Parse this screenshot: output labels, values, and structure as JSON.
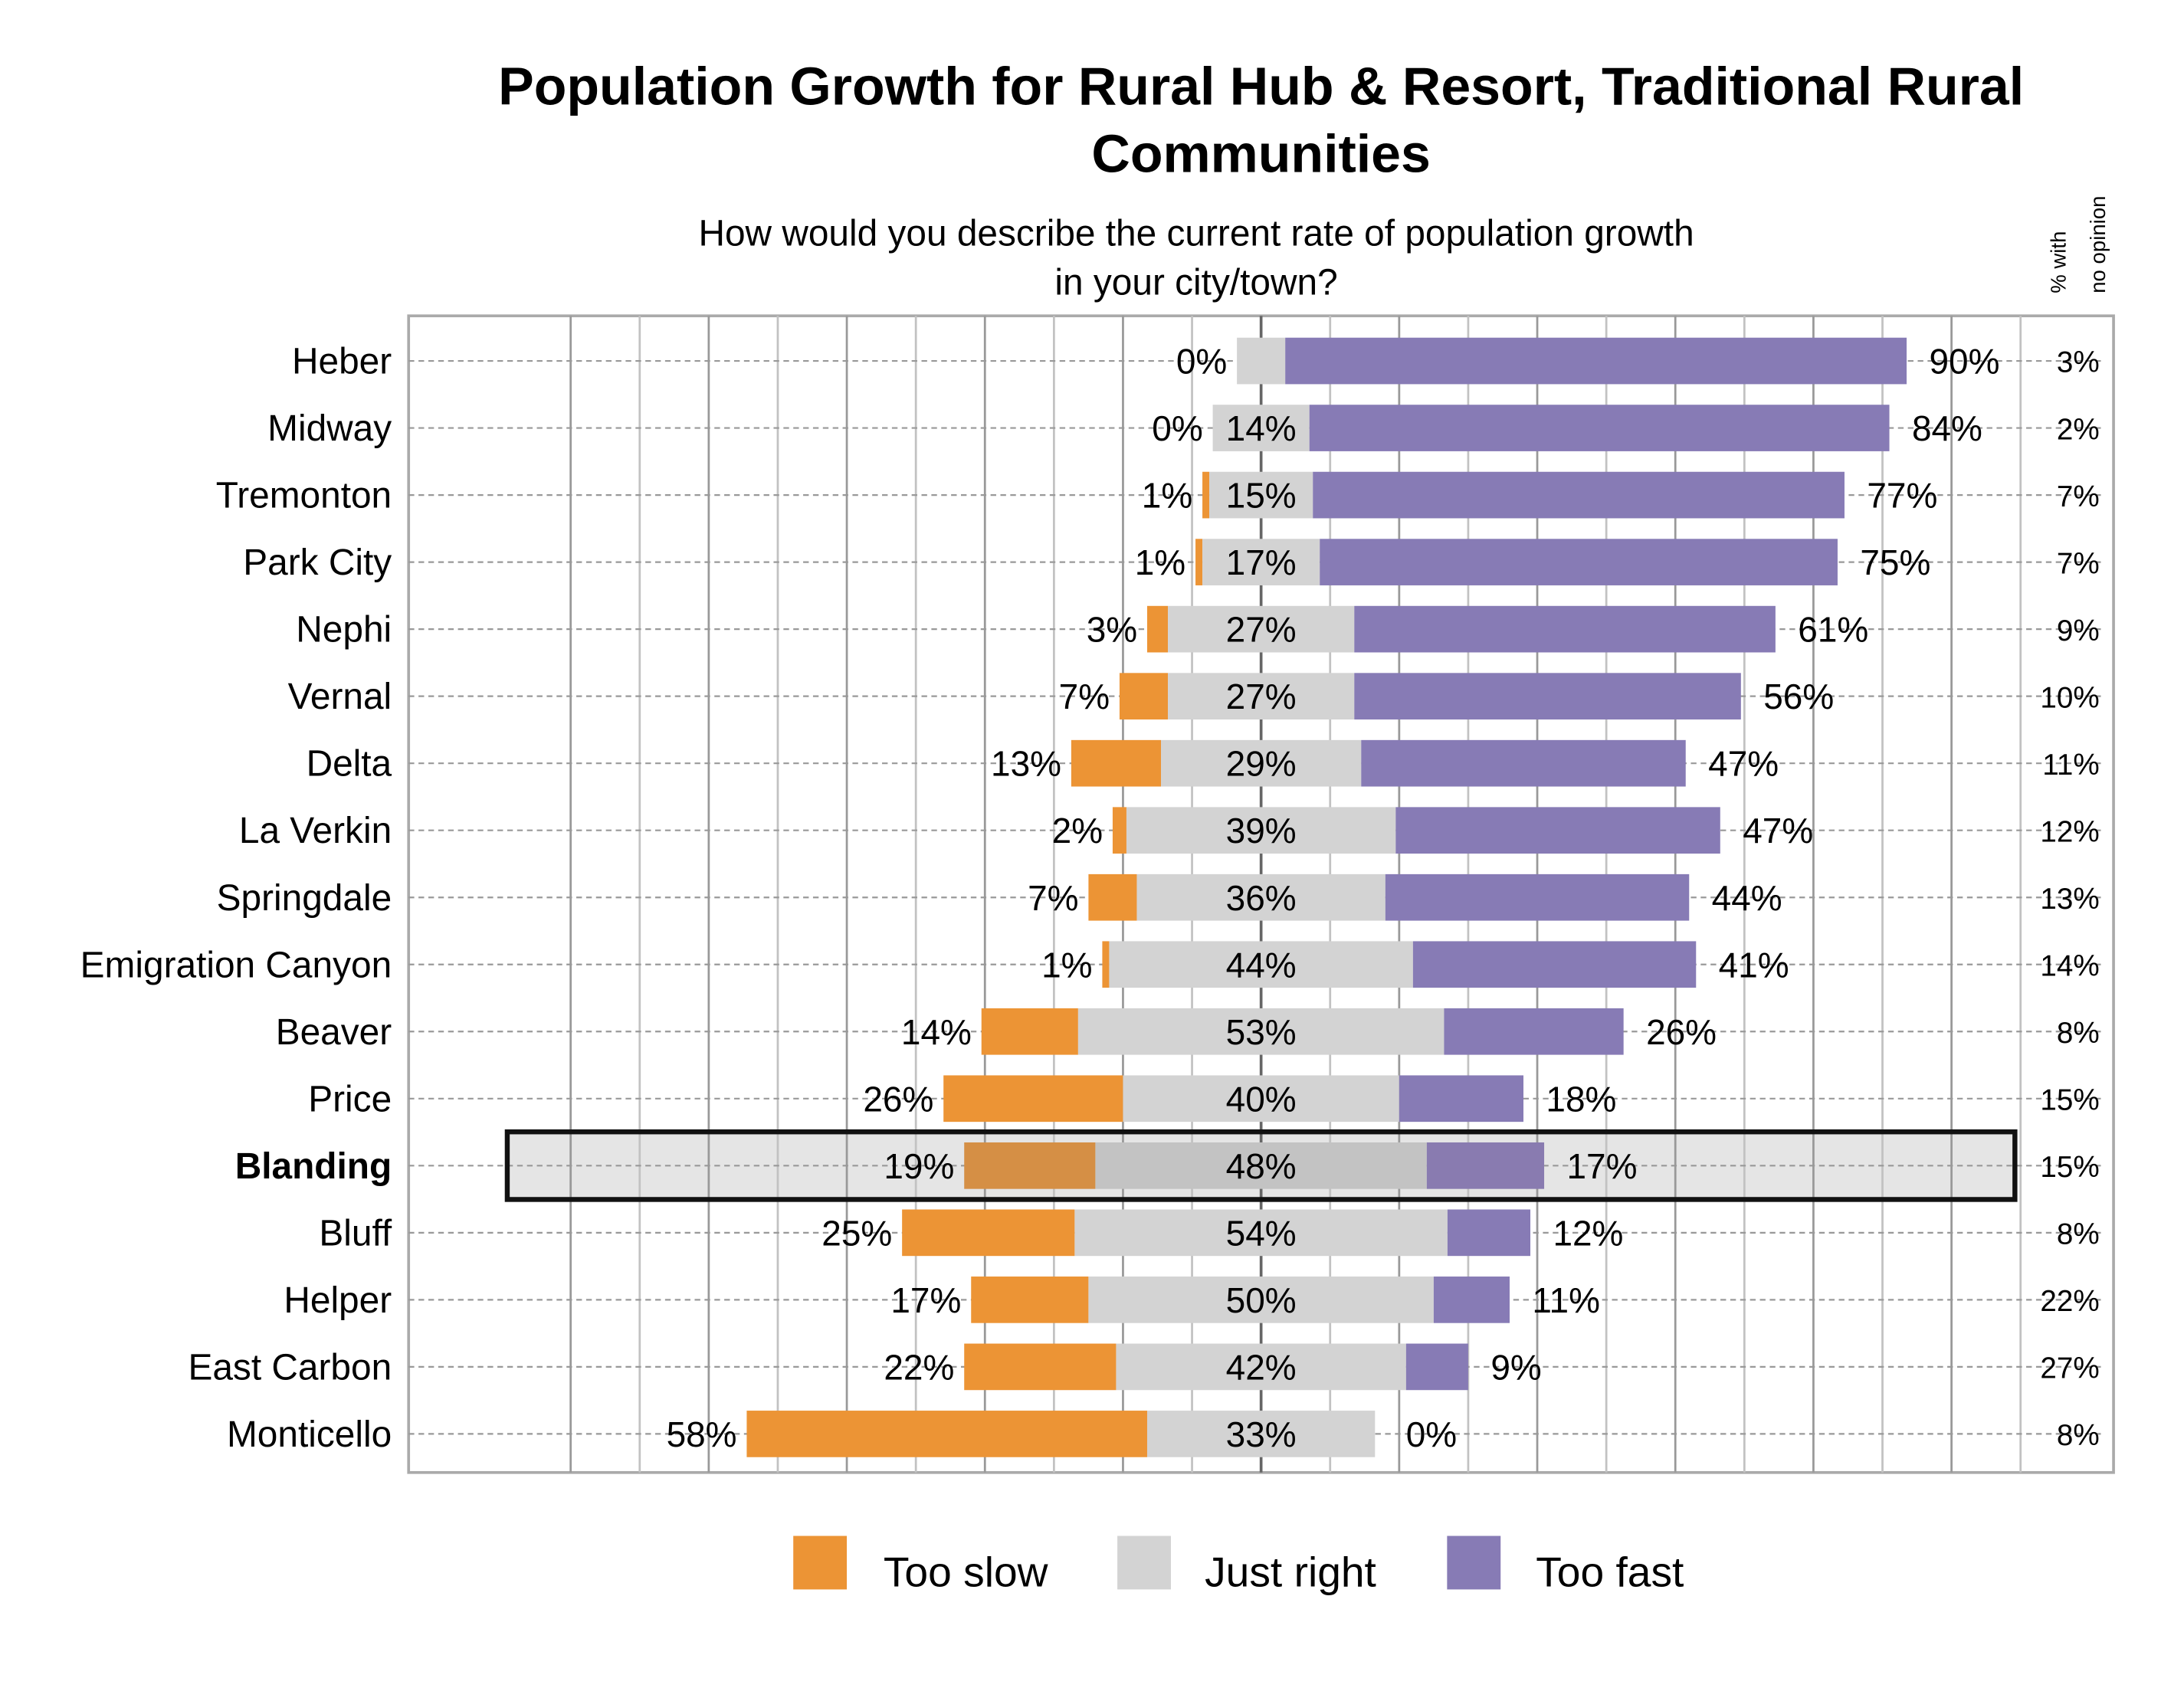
{
  "chart_data": {
    "type": "bar",
    "orientation": "horizontal",
    "stacked": "diverging",
    "title": "Population Growth for Rural Hub & Resort, Traditional Rural Communities",
    "title_lines": [
      "Population Growth for Rural Hub & Resort, Traditional Rural",
      "Communities"
    ],
    "subtitle_lines": [
      "How would you describe the current rate of population growth",
      "in your city/town?"
    ],
    "side_header_lines": [
      "% with",
      "no opinion"
    ],
    "legend": [
      "Too slow",
      "Just right",
      "Too fast"
    ],
    "legend_placement": "bottom",
    "grid": true,
    "colors": {
      "too_slow": "#ec9435",
      "just_right": "#d3d3d3",
      "too_fast": "#877bb5",
      "highlight_too_slow": "#d58f45",
      "highlight_just_right": "#c3c3c3",
      "highlight_too_fast": "#897bb0",
      "highlight_bg": "#e5e5e5"
    },
    "highlighted": "Blanding",
    "rows": [
      {
        "name": "Heber",
        "too_slow": 0,
        "just_right": 7,
        "just_right_label": "",
        "too_fast": 90,
        "no_opinion": 3
      },
      {
        "name": "Midway",
        "too_slow": 0,
        "just_right": 14,
        "too_fast": 84,
        "no_opinion": 2
      },
      {
        "name": "Tremonton",
        "too_slow": 1,
        "just_right": 15,
        "too_fast": 77,
        "no_opinion": 7
      },
      {
        "name": "Park City",
        "too_slow": 1,
        "just_right": 17,
        "too_fast": 75,
        "no_opinion": 7
      },
      {
        "name": "Nephi",
        "too_slow": 3,
        "just_right": 27,
        "too_fast": 61,
        "no_opinion": 9
      },
      {
        "name": "Vernal",
        "too_slow": 7,
        "just_right": 27,
        "too_fast": 56,
        "no_opinion": 10
      },
      {
        "name": "Delta",
        "too_slow": 13,
        "just_right": 29,
        "too_fast": 47,
        "no_opinion": 11
      },
      {
        "name": "La Verkin",
        "too_slow": 2,
        "just_right": 39,
        "too_fast": 47,
        "no_opinion": 12
      },
      {
        "name": "Springdale",
        "too_slow": 7,
        "just_right": 36,
        "too_fast": 44,
        "no_opinion": 13
      },
      {
        "name": "Emigration Canyon",
        "too_slow": 1,
        "just_right": 44,
        "too_fast": 41,
        "no_opinion": 14
      },
      {
        "name": "Beaver",
        "too_slow": 14,
        "just_right": 53,
        "too_fast": 26,
        "no_opinion": 8
      },
      {
        "name": "Price",
        "too_slow": 26,
        "just_right": 40,
        "too_fast": 18,
        "no_opinion": 15
      },
      {
        "name": "Blanding",
        "too_slow": 19,
        "just_right": 48,
        "too_fast": 17,
        "no_opinion": 15
      },
      {
        "name": "Bluff",
        "too_slow": 25,
        "just_right": 54,
        "too_fast": 12,
        "no_opinion": 8
      },
      {
        "name": "Helper",
        "too_slow": 17,
        "just_right": 50,
        "too_fast": 11,
        "no_opinion": 22
      },
      {
        "name": "East Carbon",
        "too_slow": 22,
        "just_right": 42,
        "too_fast": 9,
        "no_opinion": 27
      },
      {
        "name": "Monticello",
        "too_slow": 58,
        "just_right": 33,
        "too_fast": 0,
        "no_opinion": 8
      }
    ]
  }
}
